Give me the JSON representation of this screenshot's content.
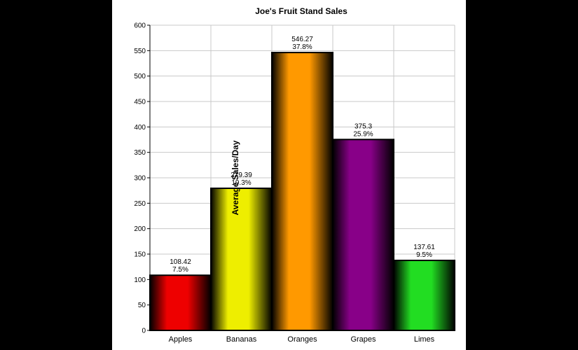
{
  "chart_data": {
    "type": "bar",
    "title": "Joe's Fruit Stand Sales",
    "xlabel": "",
    "ylabel": "Average Sales/Day",
    "ylim": [
      0,
      600
    ],
    "yticks": [
      0,
      50,
      100,
      150,
      200,
      250,
      300,
      350,
      400,
      450,
      500,
      550,
      600
    ],
    "ytick_labels": [
      "0",
      "50",
      "100",
      "150",
      "200",
      "250",
      "300",
      "350",
      "400",
      "450",
      "500",
      "550",
      "600"
    ],
    "grid": true,
    "legend": "none",
    "categories": [
      "Apples",
      "Bananas",
      "Oranges",
      "Grapes",
      "Limes"
    ],
    "values": [
      108.42,
      279.39,
      546.27,
      375.3,
      137.61
    ],
    "value_labels": [
      "108.42",
      "279.39",
      "546.27",
      "375.3",
      "137.61"
    ],
    "percent_labels": [
      "7.5%",
      "19.3%",
      "37.8%",
      "25.9%",
      "9.5%"
    ],
    "colors": [
      "#ee0000",
      "#eeee00",
      "#ff9900",
      "#880088",
      "#22dd22"
    ]
  }
}
